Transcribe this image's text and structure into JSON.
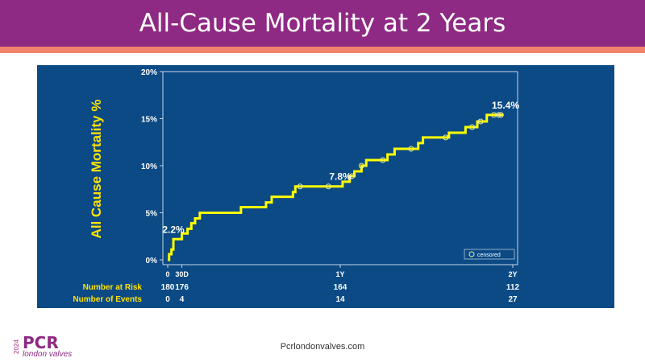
{
  "slide": {
    "title": "All-Cause Mortality at 2 Years",
    "footer_url": "Pcrlondonvalves.com",
    "logo": {
      "year": "2024",
      "brand": "PCR",
      "subtitle": "london valves"
    },
    "colors": {
      "title_bar": "#8e2a83",
      "accent_bar": "#f0846a",
      "chart_bg": "#0b4a85",
      "curve": "#ffff00",
      "label_yellow": "#ffe300"
    }
  },
  "chart_data": {
    "type": "line",
    "title": "",
    "ylabel": "All Cause Mortality %",
    "xlabel": "",
    "ylim": [
      0,
      20
    ],
    "xlim": [
      0,
      730
    ],
    "y_ticks": [
      {
        "value": 0,
        "label": "0%"
      },
      {
        "value": 5,
        "label": "5%"
      },
      {
        "value": 10,
        "label": "10%"
      },
      {
        "value": 15,
        "label": "15%"
      },
      {
        "value": 20,
        "label": "20%"
      }
    ],
    "x_ticks": [
      {
        "value": 0,
        "label": "0"
      },
      {
        "value": 30,
        "label": "30D"
      },
      {
        "value": 365,
        "label": "1Y"
      },
      {
        "value": 730,
        "label": "2Y"
      }
    ],
    "series": [
      {
        "step_points": [
          [
            0,
            0
          ],
          [
            3,
            0.6
          ],
          [
            8,
            1.1
          ],
          [
            12,
            2.2
          ],
          [
            25,
            2.2
          ],
          [
            30,
            2.8
          ],
          [
            42,
            3.3
          ],
          [
            50,
            3.9
          ],
          [
            58,
            4.4
          ],
          [
            68,
            5.0
          ],
          [
            145,
            5.0
          ],
          [
            155,
            5.6
          ],
          [
            200,
            5.6
          ],
          [
            208,
            6.1
          ],
          [
            220,
            6.7
          ],
          [
            260,
            6.7
          ],
          [
            265,
            7.2
          ],
          [
            270,
            7.8
          ],
          [
            355,
            7.8
          ],
          [
            370,
            8.3
          ],
          [
            385,
            8.9
          ],
          [
            395,
            9.4
          ],
          [
            410,
            10.0
          ],
          [
            420,
            10.6
          ],
          [
            450,
            10.6
          ],
          [
            465,
            11.2
          ],
          [
            480,
            11.8
          ],
          [
            520,
            11.8
          ],
          [
            530,
            12.4
          ],
          [
            540,
            13.0
          ],
          [
            590,
            13.0
          ],
          [
            595,
            13.5
          ],
          [
            625,
            13.5
          ],
          [
            630,
            14.1
          ],
          [
            650,
            14.1
          ],
          [
            655,
            14.7
          ],
          [
            670,
            14.7
          ],
          [
            675,
            15.4
          ],
          [
            710,
            15.4
          ]
        ],
        "censored_x": [
          280,
          340,
          390,
          410,
          455,
          515,
          588,
          644,
          662,
          690,
          700,
          705
        ]
      }
    ],
    "annotations": [
      {
        "x": 12,
        "y": 2.2,
        "label": "2.2%"
      },
      {
        "x": 365,
        "y": 7.8,
        "label": "7.8%"
      },
      {
        "x": 730,
        "y": 15.4,
        "label": "15.4%"
      }
    ],
    "legend": {
      "label": "censored",
      "position": "bottom-right"
    },
    "grid": false,
    "risk_table": {
      "rows": [
        {
          "label": "Number at Risk",
          "values": [
            {
              "x": 0,
              "value": "180"
            },
            {
              "x": 30,
              "value": "176"
            },
            {
              "x": 365,
              "value": "164"
            },
            {
              "x": 730,
              "value": "112"
            }
          ]
        },
        {
          "label": "Number of Events",
          "values": [
            {
              "x": 0,
              "value": "0"
            },
            {
              "x": 30,
              "value": "4"
            },
            {
              "x": 365,
              "value": "14"
            },
            {
              "x": 730,
              "value": "27"
            }
          ]
        }
      ]
    }
  }
}
